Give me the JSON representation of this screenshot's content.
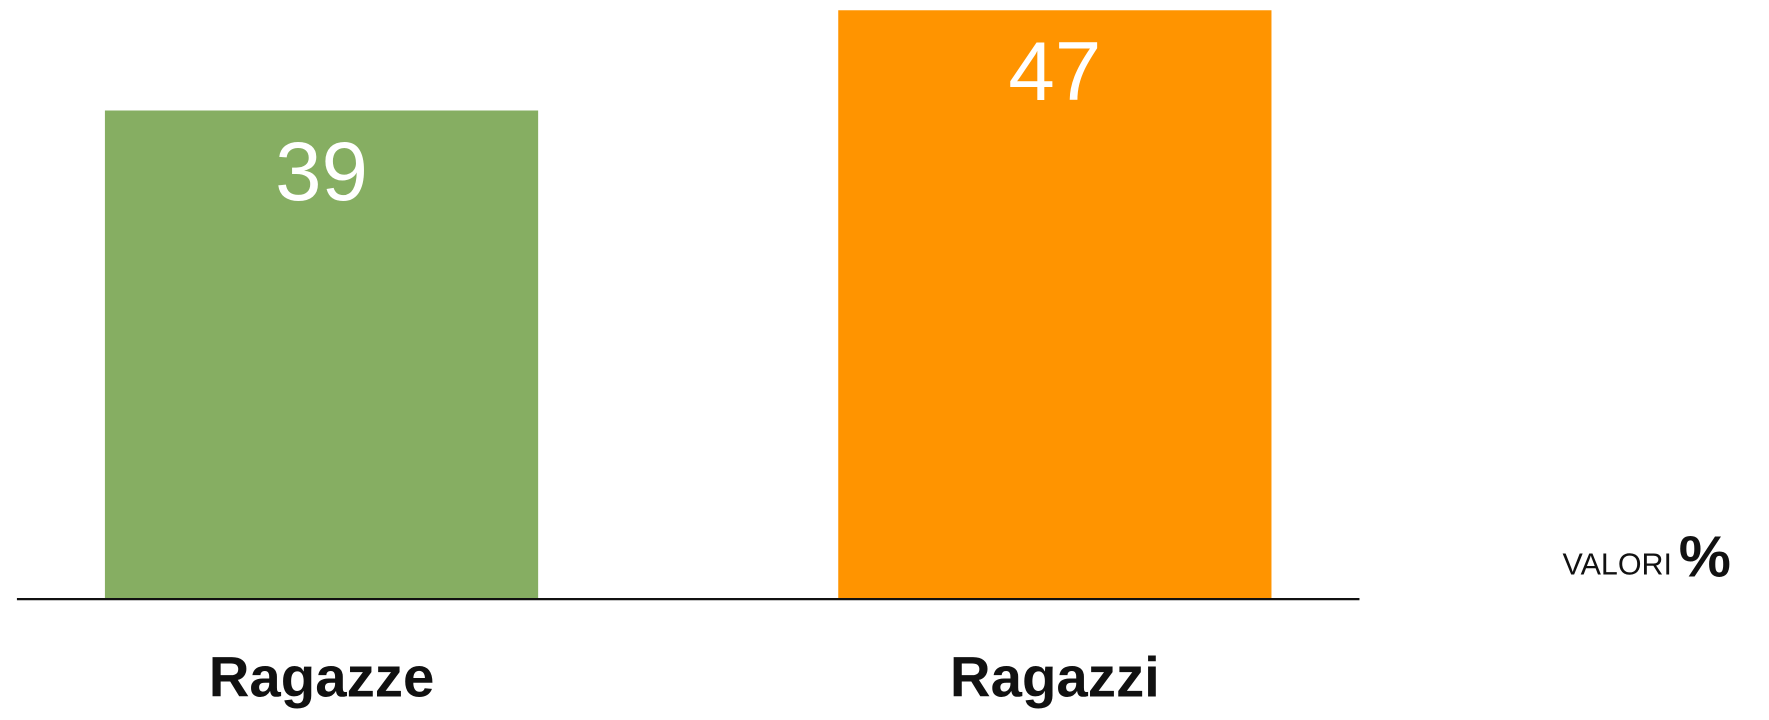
{
  "chart_data": {
    "type": "bar",
    "categories": [
      "Ragazze",
      "Ragazzi"
    ],
    "values": [
      39,
      47
    ],
    "colors": [
      "#86ae62",
      "#ff9400"
    ],
    "unit_label": "VALORI",
    "unit_symbol": "%"
  }
}
